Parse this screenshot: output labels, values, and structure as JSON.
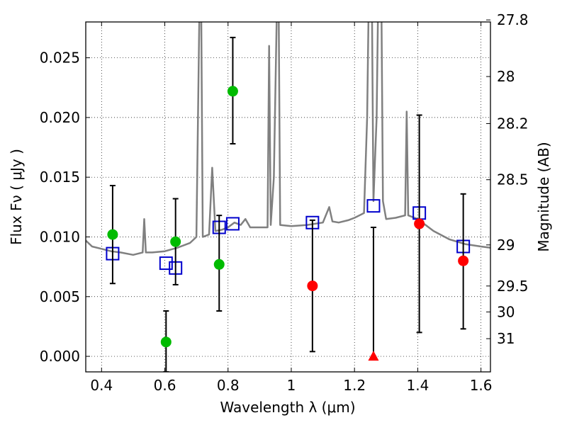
{
  "chart_data": {
    "type": "scatter",
    "xlabel": "Wavelength  λ (μm)",
    "ylabel": "Flux  Fν  ( μJy )",
    "y2label": "Magnitude (AB)",
    "xlim": [
      0.35,
      1.63
    ],
    "ylim": [
      -0.0013,
      0.028
    ],
    "grid": true,
    "xticks": [
      0.4,
      0.6,
      0.8,
      1.0,
      1.2,
      1.4,
      1.6
    ],
    "xtick_labels": [
      "0.4",
      "0.6",
      "0.8",
      "1",
      "1.2",
      "1.4",
      "1.6"
    ],
    "yticks": [
      0.0,
      0.005,
      0.01,
      0.015,
      0.02,
      0.025
    ],
    "ytick_labels": [
      "0.000",
      "0.005",
      "0.010",
      "0.015",
      "0.020",
      "0.025"
    ],
    "y2ticks": [
      {
        "label": "27.8",
        "flux": 0.02817
      },
      {
        "label": "28",
        "flux": 0.02343
      },
      {
        "label": "28.2",
        "flux": 0.01949
      },
      {
        "label": "28.5",
        "flux": 0.01479
      },
      {
        "label": "29",
        "flux": 0.00933
      },
      {
        "label": "29.5",
        "flux": 0.00589
      },
      {
        "label": "30",
        "flux": 0.00372
      },
      {
        "label": "31",
        "flux": 0.00148
      }
    ],
    "colors": {
      "spectrum": "#808080",
      "green": "#00bb00",
      "red": "#ff0000",
      "model": "#0000cc",
      "errorbar": "#000000"
    },
    "spectrum": {
      "x": [
        0.35,
        0.37,
        0.4,
        0.43,
        0.46,
        0.5,
        0.53,
        0.535,
        0.54,
        0.56,
        0.6,
        0.64,
        0.68,
        0.7,
        0.71,
        0.715,
        0.72,
        0.74,
        0.75,
        0.76,
        0.78,
        0.8,
        0.82,
        0.84,
        0.855,
        0.87,
        0.9,
        0.925,
        0.93,
        0.935,
        0.945,
        0.955,
        0.96,
        0.965,
        1.0,
        1.05,
        1.1,
        1.12,
        1.13,
        1.15,
        1.18,
        1.2,
        1.23,
        1.24,
        1.245,
        1.255,
        1.26,
        1.27,
        1.275,
        1.285,
        1.29,
        1.3,
        1.33,
        1.36,
        1.365,
        1.37,
        1.4,
        1.45,
        1.5,
        1.55,
        1.6,
        1.63
      ],
      "y": [
        0.0097,
        0.0092,
        0.009,
        0.0088,
        0.0087,
        0.0085,
        0.0087,
        0.0115,
        0.0087,
        0.0087,
        0.0088,
        0.0091,
        0.0095,
        0.01,
        0.03,
        0.03,
        0.01,
        0.0102,
        0.0158,
        0.0105,
        0.0106,
        0.0108,
        0.0112,
        0.011,
        0.0115,
        0.0108,
        0.0108,
        0.0108,
        0.026,
        0.011,
        0.015,
        0.03,
        0.03,
        0.011,
        0.0109,
        0.011,
        0.0112,
        0.0125,
        0.0113,
        0.0112,
        0.0114,
        0.0116,
        0.012,
        0.02,
        0.03,
        0.03,
        0.013,
        0.02,
        0.03,
        0.03,
        0.013,
        0.0115,
        0.0116,
        0.0118,
        0.0205,
        0.0118,
        0.0115,
        0.0105,
        0.0098,
        0.0094,
        0.0092,
        0.0091
      ]
    },
    "series": [
      {
        "marker": "circle",
        "color": "green",
        "points": [
          {
            "x": 0.435,
            "y": 0.0102,
            "err_low": 0.0061,
            "err_high": 0.0143
          },
          {
            "x": 0.604,
            "y": 0.0012,
            "err_low": -0.0013,
            "err_high": 0.0038
          },
          {
            "x": 0.634,
            "y": 0.0096,
            "err_low": 0.006,
            "err_high": 0.0132
          },
          {
            "x": 0.772,
            "y": 0.0077,
            "err_low": 0.0038,
            "err_high": 0.0118
          },
          {
            "x": 0.815,
            "y": 0.0222,
            "err_low": 0.0178,
            "err_high": 0.0267
          }
        ]
      },
      {
        "marker": "circle",
        "color": "red",
        "points": [
          {
            "x": 1.067,
            "y": 0.0059,
            "err_low": 0.0004,
            "err_high": 0.0114
          },
          {
            "x": 1.405,
            "y": 0.0111,
            "err_low": 0.002,
            "err_high": 0.0202
          },
          {
            "x": 1.544,
            "y": 0.008,
            "err_low": 0.0023,
            "err_high": 0.0136
          }
        ]
      },
      {
        "marker": "triangle",
        "color": "red",
        "points": [
          {
            "x": 1.26,
            "y": 0.0,
            "err_low": 0.0,
            "err_high": 0.0108
          }
        ]
      },
      {
        "marker": "open-square",
        "color": "model",
        "points": [
          {
            "x": 0.435,
            "y": 0.0086
          },
          {
            "x": 0.604,
            "y": 0.0078
          },
          {
            "x": 0.634,
            "y": 0.0074
          },
          {
            "x": 0.772,
            "y": 0.0108
          },
          {
            "x": 0.815,
            "y": 0.0111
          },
          {
            "x": 1.067,
            "y": 0.0112
          },
          {
            "x": 1.26,
            "y": 0.0126
          },
          {
            "x": 1.405,
            "y": 0.012
          },
          {
            "x": 1.544,
            "y": 0.0092
          }
        ]
      }
    ]
  }
}
